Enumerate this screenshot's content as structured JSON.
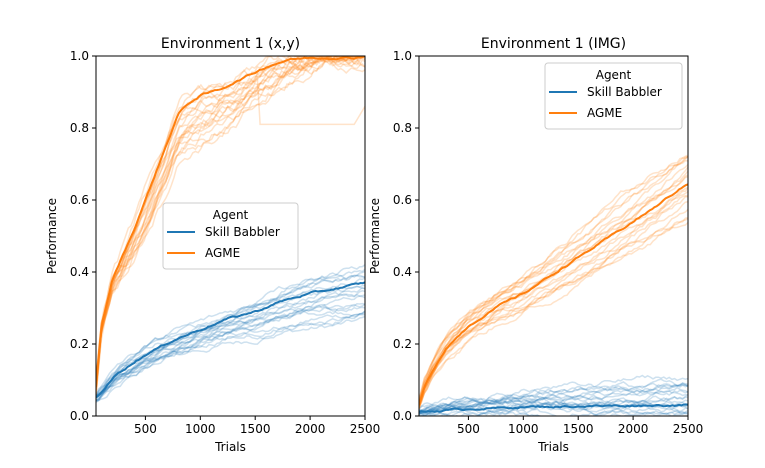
{
  "chart_data": [
    {
      "type": "line",
      "title": "Environment 1 (x,y)",
      "xlabel": "Trials",
      "ylabel": "Performance",
      "xlim": [
        50,
        2500
      ],
      "ylim": [
        0,
        1.0
      ],
      "xticks": [
        500,
        1000,
        1500,
        2000,
        2500
      ],
      "yticks": [
        0.0,
        0.2,
        0.4,
        0.6,
        0.8,
        1.0
      ],
      "ytick_labels": [
        "0.0",
        "0.2",
        "0.4",
        "0.6",
        "0.8",
        "1.0"
      ],
      "legend": {
        "title": "Agent",
        "placement": "center-right",
        "entries": [
          "Skill Babbler",
          "AGME"
        ]
      },
      "series": [
        {
          "name": "Skill Babbler",
          "color": "#1f77b4",
          "x": [
            50,
            250,
            500,
            750,
            1000,
            1250,
            1500,
            1750,
            2000,
            2250,
            2500
          ],
          "y": [
            0.05,
            0.12,
            0.17,
            0.21,
            0.24,
            0.27,
            0.29,
            0.32,
            0.34,
            0.355,
            0.37
          ],
          "individual_runs_range": [
            0.27,
            0.41
          ]
        },
        {
          "name": "AGME",
          "color": "#ff7f0e",
          "x": [
            50,
            100,
            200,
            300,
            400,
            500,
            600,
            700,
            800,
            900,
            1000,
            1100,
            1200,
            1400,
            1600,
            1800,
            2000,
            2200,
            2400,
            2500
          ],
          "y": [
            0.08,
            0.25,
            0.38,
            0.45,
            0.52,
            0.6,
            0.68,
            0.76,
            0.84,
            0.87,
            0.89,
            0.9,
            0.91,
            0.94,
            0.97,
            0.99,
            0.995,
            0.995,
            0.995,
            1.0
          ],
          "individual_runs_range": [
            0.81,
            1.0
          ]
        }
      ]
    },
    {
      "type": "line",
      "title": "Environment 1 (IMG)",
      "xlabel": "Trials",
      "ylabel": "Performance",
      "xlim": [
        50,
        2500
      ],
      "ylim": [
        0,
        1.0
      ],
      "xticks": [
        500,
        1000,
        1500,
        2000,
        2500
      ],
      "yticks": [
        0.0,
        0.2,
        0.4,
        0.6,
        0.8,
        1.0
      ],
      "ytick_labels": [
        "0.0",
        "0.2",
        "0.4",
        "0.6",
        "0.8",
        "1.0"
      ],
      "legend": {
        "title": "Agent",
        "placement": "upper-right",
        "entries": [
          "Skill Babbler",
          "AGME"
        ]
      },
      "series": [
        {
          "name": "Skill Babbler",
          "color": "#1f77b4",
          "x": [
            50,
            250,
            500,
            750,
            1000,
            1250,
            1500,
            1750,
            2000,
            2250,
            2500
          ],
          "y": [
            0.01,
            0.015,
            0.02,
            0.022,
            0.025,
            0.026,
            0.027,
            0.028,
            0.029,
            0.03,
            0.03
          ],
          "individual_runs_range": [
            0.0,
            0.1
          ]
        },
        {
          "name": "AGME",
          "color": "#ff7f0e",
          "x": [
            50,
            100,
            200,
            300,
            400,
            500,
            600,
            700,
            800,
            900,
            1000,
            1100,
            1200,
            1400,
            1600,
            1800,
            2000,
            2200,
            2400,
            2500
          ],
          "y": [
            0.03,
            0.08,
            0.14,
            0.19,
            0.22,
            0.25,
            0.27,
            0.29,
            0.31,
            0.325,
            0.34,
            0.36,
            0.38,
            0.42,
            0.46,
            0.5,
            0.54,
            0.58,
            0.625,
            0.645
          ],
          "individual_runs_range": [
            0.55,
            0.74
          ]
        }
      ]
    }
  ]
}
